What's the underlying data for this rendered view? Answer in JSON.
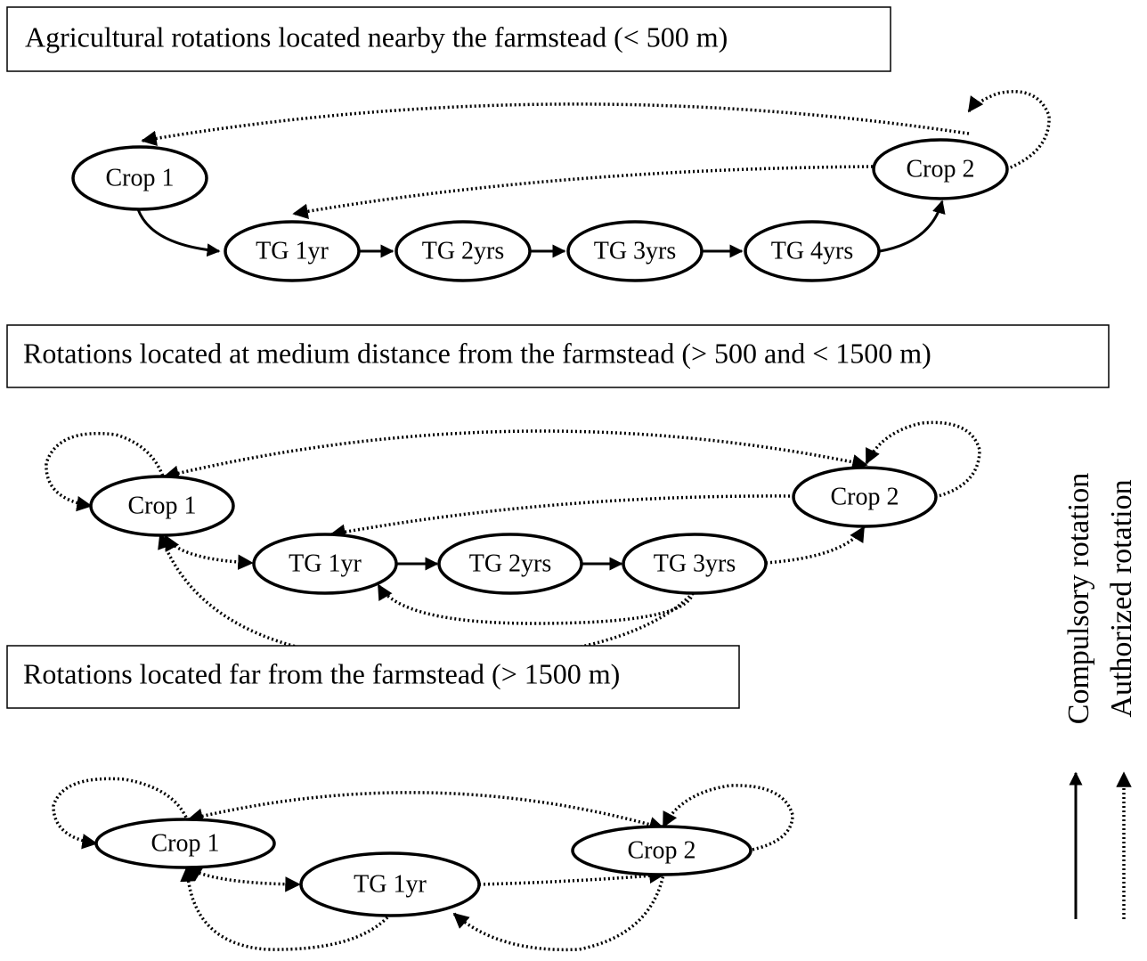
{
  "sections": [
    {
      "title": "Agricultural rotations located nearby the farmstead (< 500 m)",
      "nodes": [
        "Crop 1",
        "TG 1yr",
        "TG 2yrs",
        "TG 3yrs",
        "TG 4yrs",
        "Crop 2"
      ]
    },
    {
      "title": "Rotations located at medium distance from the farmstead (> 500 and < 1500 m)",
      "nodes": [
        "Crop 1",
        "TG 1yr",
        "TG 2yrs",
        "TG 3yrs",
        "Crop 2"
      ]
    },
    {
      "title": "Rotations located far from the farmstead (> 1500 m)",
      "nodes": [
        "Crop 1",
        "TG 1yr",
        "Crop 2"
      ]
    }
  ],
  "legend": {
    "compulsory": "Compulsory rotation",
    "authorized": "Authorized rotation"
  }
}
